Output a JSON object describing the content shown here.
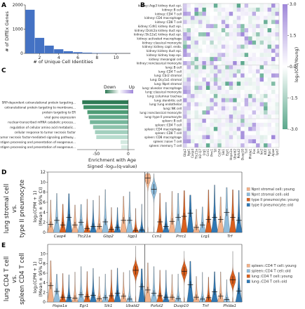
{
  "panel_labels": [
    "A",
    "B",
    "C",
    "D",
    "E"
  ],
  "colors": {
    "bar_blue": "#4472c4",
    "up_purple": "#9f87d9",
    "down_green": "#5ba88c",
    "light_orange": "#f2b189",
    "light_blue": "#8ebcdc",
    "dark_orange": "#d95f1e",
    "dark_blue": "#2f78b4"
  },
  "chart_data": [
    {
      "type": "bar",
      "panel": "A",
      "x": [
        1,
        2,
        3,
        4,
        5,
        6,
        7,
        8,
        9,
        10,
        11
      ],
      "values": [
        1800,
        640,
        320,
        170,
        90,
        50,
        30,
        15,
        8,
        4,
        2
      ],
      "xlabel": "# of Unique Cell Identities",
      "ylabel": "# of DiffEx Genes",
      "xticks": [
        "2",
        "4",
        "6",
        "8",
        "10"
      ],
      "yticks": [
        "0",
        "1000",
        "2000"
      ],
      "ylim": [
        0,
        2000
      ]
    },
    {
      "type": "heatmap",
      "panel": "B",
      "rows": [
        "kidney::Aqp3 kidney duct epi.",
        "kidney::B cell",
        "kidney::CD4 T cell",
        "kidney::CD4 macrophage",
        "kidney::CD8 T cell",
        "kidney::Cdh1 kidney duct epi.",
        "kidney::Dcdc2a kidney duct epi.",
        "kidney::Slc12a1 kidney duct epi.",
        "kidney::activated macrophage",
        "kidney::classical monocyte",
        "kidney::kidney capil. endo.",
        "kidney::kidney duct epi.",
        "kidney::kidney loop epi.",
        "kidney::mesangial cell",
        "kidney::nonclassical monocyte",
        "lung::B cell",
        "lung::CD4 T cell",
        "lung::Cbr2 stromal",
        "lung::Dcy1a1 stromal",
        "lung::Npnt stromal",
        "lung::alveolar macrophage",
        "lung::classical monocyte",
        "lung::columnar trachea",
        "lung::dendritic cell",
        "lung::lung endothelial",
        "lung::NK cell",
        "lung::nonclassical monocyte",
        "lung::type II pneumocyte",
        "spleen::B cell",
        "spleen::CD4 T cell",
        "spleen::CD4 macrophage",
        "spleen::CD8 T cell",
        "spleen::CD8 macrophage",
        "spleen::naive T cell",
        "spleen::memory T cell"
      ],
      "columns": [
        "Gbp2",
        "Iigp1",
        "Casp4",
        "Ttc21a",
        "H2-Q7",
        "Lrg1",
        "Ccn1",
        "Prrc1",
        "Trf",
        "Cd74",
        "Sik1",
        "Egr1",
        "Hspa1a",
        "Ubald2",
        "Pofut2",
        "Dusp10",
        "Tnf",
        "Phlda1",
        "Fos",
        "Jun",
        "Ier2",
        "Klf2",
        "Rgs1",
        "Apoe",
        "Lyz2"
      ],
      "colorbar_label": "log₂(Old/Young)",
      "colorbar_ticks": [
        "3.0",
        "1.5",
        "0.0",
        "-1.5",
        "-3.0"
      ],
      "vlim": [
        -3.0,
        3.0
      ]
    },
    {
      "type": "bar",
      "panel": "C",
      "categories": [
        "SRP-dependent cotranslational protein targeting...",
        "cotranslational protein targeting to membrane...",
        "protein targeting to ER",
        "viral gene expression",
        "nuclear-transcribed mRNA catabolic process...",
        "regulation of cellular amino acid metabolic...",
        "cellular response to tumor necrosis factor",
        "tumor necrosis factor-mediated signaling pathway...",
        "antigen processing and presentation of exogenous...",
        "antigen processing and presentation of exogenous..."
      ],
      "values": [
        -72,
        -70,
        -64,
        -62,
        -60,
        -55,
        -52,
        -50,
        -12,
        -11
      ],
      "xlabel": "Enrichment with Age",
      "xlabel2": "Signed -log₁₀(q-value)",
      "xticks": [
        "-50",
        "0"
      ],
      "legend": [
        "Down",
        "Up"
      ],
      "xlim": [
        -80,
        10
      ]
    },
    {
      "type": "violin",
      "panel": "D",
      "side_label_line1": "lung stromal cell",
      "side_label_line2": "vs.",
      "side_label_line3": "type II pneumocyte",
      "ylabel": "log₂(CPM + 1)",
      "ylabel2": "(Mean ± 95% CI)",
      "ylim": [
        0,
        12
      ],
      "yticks": [
        "0",
        "2",
        "4",
        "6",
        "8",
        "10",
        "12"
      ],
      "genes": [
        "Casp4",
        "Ttc21a",
        "Gbp2",
        "Iigp1",
        "Ccn1",
        "Prrc1",
        "Lrg1",
        "Trf"
      ],
      "series": [
        {
          "name": "Npnt stromal cell::young",
          "values": [
            1.6,
            1.5,
            1.2,
            2.4,
            10.8,
            2.2,
            1.0,
            2.6
          ]
        },
        {
          "name": "Npnt stromal cell::old",
          "values": [
            2.4,
            2.0,
            2.1,
            2.4,
            8.6,
            3.0,
            1.5,
            4.0
          ]
        },
        {
          "name": "type II pneumocyte::young",
          "values": [
            1.5,
            0.8,
            0.6,
            0.4,
            2.1,
            3.2,
            2.6,
            3.0
          ]
        },
        {
          "name": "type II pneumocyte::old",
          "values": [
            3.0,
            1.2,
            1.0,
            0.5,
            1.2,
            3.8,
            3.0,
            2.4
          ]
        }
      ]
    },
    {
      "type": "violin",
      "panel": "E",
      "side_label_line1": "lung CD4 T cell",
      "side_label_line2": "vs.",
      "side_label_line3": "spleen CD4 T cell",
      "ylabel": "log₂(CPM + 1)",
      "ylabel2": "(Mean ± 95% CI)",
      "ylim": [
        0,
        12
      ],
      "yticks": [
        "0",
        "2",
        "4",
        "6",
        "8",
        "10"
      ],
      "genes": [
        "Hspa1a",
        "Egr1",
        "Sik1",
        "Ubald2",
        "Pofut2",
        "Dusp10",
        "Tnf",
        "Phlda1"
      ],
      "series": [
        {
          "name": "spleen::CD4 T cell::young",
          "values": [
            3.4,
            0.8,
            0.7,
            1.2,
            2.5,
            1.0,
            1.0,
            1.2
          ]
        },
        {
          "name": "spleen::CD4 T cell::old",
          "values": [
            2.2,
            1.5,
            0.9,
            0.6,
            1.8,
            0.7,
            0.6,
            0.5
          ]
        },
        {
          "name": "lung::CD4 T cell::young",
          "values": [
            1.0,
            1.1,
            1.3,
            6.6,
            1.3,
            6.4,
            0.9,
            4.6
          ]
        },
        {
          "name": "lung::CD4 T cell::old",
          "values": [
            0.9,
            1.4,
            1.8,
            3.2,
            1.0,
            3.6,
            2.1,
            2.3
          ]
        }
      ]
    }
  ]
}
